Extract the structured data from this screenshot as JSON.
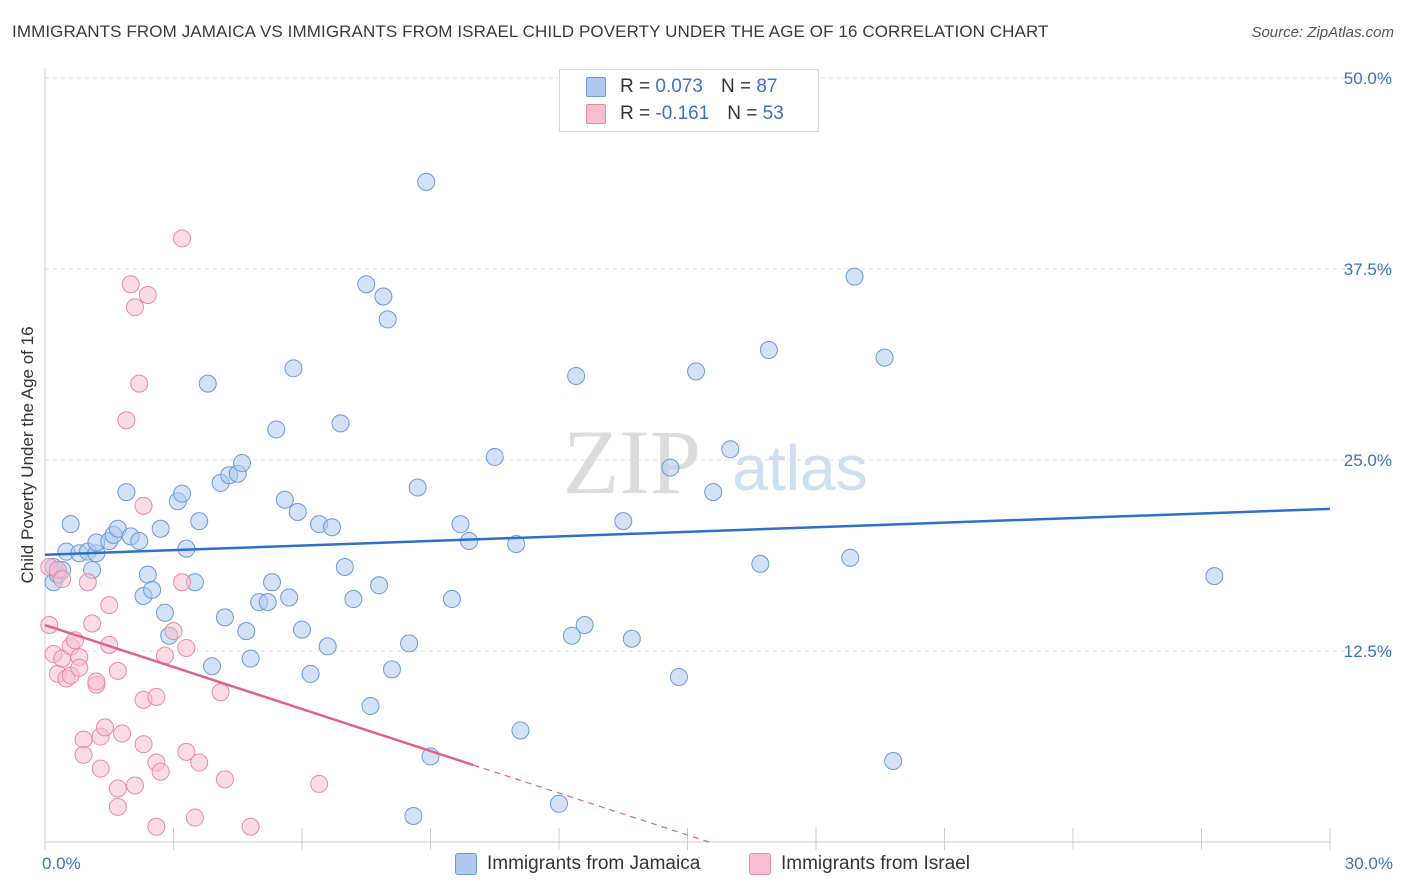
{
  "title": "IMMIGRANTS FROM JAMAICA VS IMMIGRANTS FROM ISRAEL CHILD POVERTY UNDER THE AGE OF 16 CORRELATION CHART",
  "source": "Source: ZipAtlas.com",
  "watermark": {
    "zip": "ZIP",
    "atlas": "atlas"
  },
  "colors": {
    "jamaica_fill": "#aecbef",
    "jamaica_stroke": "#6a9bd8",
    "jamaica_line": "#2f6fc9",
    "israel_fill": "#f7bfd0",
    "israel_stroke": "#e58aa8",
    "israel_line": "#e0608f",
    "tick_text": "#3d72c0",
    "grid": "#dedede"
  },
  "legend": {
    "rows": [
      {
        "r_label": "R =",
        "r_value": "0.073",
        "n_label": "N =",
        "n_value": "87",
        "series": "jamaica"
      },
      {
        "r_label": "R =",
        "r_value": "-0.161",
        "n_label": "N =",
        "n_value": "53",
        "series": "israel"
      }
    ]
  },
  "bottom_legend": [
    {
      "label": "Immigrants from Jamaica",
      "series": "jamaica"
    },
    {
      "label": "Immigrants from Israel",
      "series": "israel"
    }
  ],
  "chart_data": {
    "type": "scatter",
    "title": "IMMIGRANTS FROM JAMAICA VS IMMIGRANTS FROM ISRAEL CHILD POVERTY UNDER THE AGE OF 16 CORRELATION CHART",
    "xlabel": "",
    "ylabel": "Child Poverty Under the Age of 16",
    "xlim": [
      0,
      30
    ],
    "ylim": [
      0,
      50
    ],
    "x_tick_labels": [
      "0.0%",
      "30.0%"
    ],
    "y_ticks": [
      12.5,
      25.0,
      37.5,
      50.0
    ],
    "y_tick_labels": [
      "12.5%",
      "25.0%",
      "37.5%",
      "50.0%"
    ],
    "grid": true,
    "legend_position": "top-center",
    "series": [
      {
        "name": "Immigrants from Jamaica",
        "key": "jamaica",
        "R": 0.073,
        "N": 87,
        "trend": {
          "x": [
            0,
            30
          ],
          "y": [
            18.8,
            21.8
          ],
          "dashed_from": null
        },
        "points": [
          [
            0.2,
            17.0
          ],
          [
            0.3,
            17.5
          ],
          [
            0.2,
            18.0
          ],
          [
            0.4,
            17.8
          ],
          [
            0.5,
            19.0
          ],
          [
            0.6,
            20.8
          ],
          [
            0.8,
            18.9
          ],
          [
            1.0,
            19.0
          ],
          [
            1.1,
            17.8
          ],
          [
            1.2,
            18.9
          ],
          [
            1.2,
            19.6
          ],
          [
            1.5,
            19.7
          ],
          [
            1.6,
            20.1
          ],
          [
            1.7,
            20.5
          ],
          [
            1.9,
            22.9
          ],
          [
            2.0,
            20.0
          ],
          [
            2.2,
            19.7
          ],
          [
            2.3,
            16.1
          ],
          [
            2.4,
            17.5
          ],
          [
            2.5,
            16.5
          ],
          [
            2.7,
            20.5
          ],
          [
            2.8,
            15.0
          ],
          [
            2.9,
            13.5
          ],
          [
            3.1,
            22.3
          ],
          [
            3.2,
            22.8
          ],
          [
            3.3,
            19.2
          ],
          [
            3.5,
            17.0
          ],
          [
            3.6,
            21.0
          ],
          [
            3.8,
            30.0
          ],
          [
            3.9,
            11.5
          ],
          [
            4.1,
            23.5
          ],
          [
            4.2,
            14.7
          ],
          [
            4.3,
            24.0
          ],
          [
            4.5,
            24.1
          ],
          [
            4.6,
            24.8
          ],
          [
            4.7,
            13.8
          ],
          [
            4.8,
            12.0
          ],
          [
            5.0,
            15.7
          ],
          [
            5.2,
            15.7
          ],
          [
            5.3,
            17.0
          ],
          [
            5.4,
            27.0
          ],
          [
            5.6,
            22.4
          ],
          [
            5.7,
            16.0
          ],
          [
            5.8,
            31.0
          ],
          [
            5.9,
            21.6
          ],
          [
            6.0,
            13.9
          ],
          [
            6.2,
            11.0
          ],
          [
            6.4,
            20.8
          ],
          [
            6.6,
            12.8
          ],
          [
            6.7,
            20.6
          ],
          [
            6.9,
            27.4
          ],
          [
            7.0,
            18.0
          ],
          [
            7.2,
            15.9
          ],
          [
            7.5,
            36.5
          ],
          [
            7.6,
            8.9
          ],
          [
            7.8,
            16.8
          ],
          [
            7.9,
            35.7
          ],
          [
            8.0,
            34.2
          ],
          [
            8.1,
            11.3
          ],
          [
            8.5,
            13.0
          ],
          [
            8.6,
            1.7
          ],
          [
            8.7,
            23.2
          ],
          [
            8.9,
            43.2
          ],
          [
            9.0,
            5.6
          ],
          [
            9.5,
            15.9
          ],
          [
            9.7,
            20.8
          ],
          [
            9.9,
            19.7
          ],
          [
            10.5,
            25.2
          ],
          [
            11.0,
            19.5
          ],
          [
            11.1,
            7.3
          ],
          [
            12.0,
            2.5
          ],
          [
            12.3,
            13.5
          ],
          [
            12.4,
            30.5
          ],
          [
            12.6,
            14.2
          ],
          [
            13.5,
            21.0
          ],
          [
            13.7,
            13.3
          ],
          [
            14.6,
            24.5
          ],
          [
            14.8,
            10.8
          ],
          [
            15.2,
            30.8
          ],
          [
            15.6,
            22.9
          ],
          [
            16.0,
            25.7
          ],
          [
            16.7,
            18.2
          ],
          [
            16.9,
            32.2
          ],
          [
            18.8,
            18.6
          ],
          [
            18.9,
            37.0
          ],
          [
            19.6,
            31.7
          ],
          [
            19.8,
            5.3
          ],
          [
            27.3,
            17.4
          ]
        ]
      },
      {
        "name": "Immigrants from Israel",
        "key": "israel",
        "R": -0.161,
        "N": 53,
        "trend": {
          "x": [
            0,
            15.5
          ],
          "y": [
            14.2,
            0.0
          ],
          "dashed_from": 10.0
        },
        "points": [
          [
            0.1,
            18.0
          ],
          [
            0.1,
            14.2
          ],
          [
            0.2,
            12.3
          ],
          [
            0.3,
            17.8
          ],
          [
            0.3,
            11.0
          ],
          [
            0.4,
            17.2
          ],
          [
            0.4,
            12.0
          ],
          [
            0.5,
            10.7
          ],
          [
            0.6,
            12.8
          ],
          [
            0.6,
            10.9
          ],
          [
            0.7,
            13.2
          ],
          [
            0.8,
            12.1
          ],
          [
            0.8,
            11.4
          ],
          [
            0.9,
            6.7
          ],
          [
            0.9,
            5.7
          ],
          [
            1.0,
            17.0
          ],
          [
            1.1,
            14.3
          ],
          [
            1.2,
            10.3
          ],
          [
            1.2,
            10.5
          ],
          [
            1.3,
            4.8
          ],
          [
            1.3,
            6.9
          ],
          [
            1.4,
            7.5
          ],
          [
            1.5,
            12.9
          ],
          [
            1.5,
            15.5
          ],
          [
            1.7,
            11.2
          ],
          [
            1.7,
            2.3
          ],
          [
            1.7,
            3.5
          ],
          [
            1.8,
            7.1
          ],
          [
            1.9,
            27.6
          ],
          [
            2.0,
            36.5
          ],
          [
            2.1,
            35.0
          ],
          [
            2.1,
            3.7
          ],
          [
            2.2,
            30.0
          ],
          [
            2.3,
            6.4
          ],
          [
            2.3,
            22.0
          ],
          [
            2.4,
            35.8
          ],
          [
            2.3,
            9.3
          ],
          [
            2.6,
            9.5
          ],
          [
            2.6,
            1.0
          ],
          [
            2.6,
            5.2
          ],
          [
            2.7,
            4.6
          ],
          [
            2.8,
            12.2
          ],
          [
            3.0,
            13.8
          ],
          [
            3.2,
            17.0
          ],
          [
            3.2,
            39.5
          ],
          [
            3.3,
            5.9
          ],
          [
            3.3,
            12.7
          ],
          [
            3.5,
            1.6
          ],
          [
            3.6,
            5.2
          ],
          [
            4.1,
            9.8
          ],
          [
            4.2,
            4.1
          ],
          [
            4.8,
            1.0
          ],
          [
            6.4,
            3.8
          ]
        ]
      }
    ]
  }
}
